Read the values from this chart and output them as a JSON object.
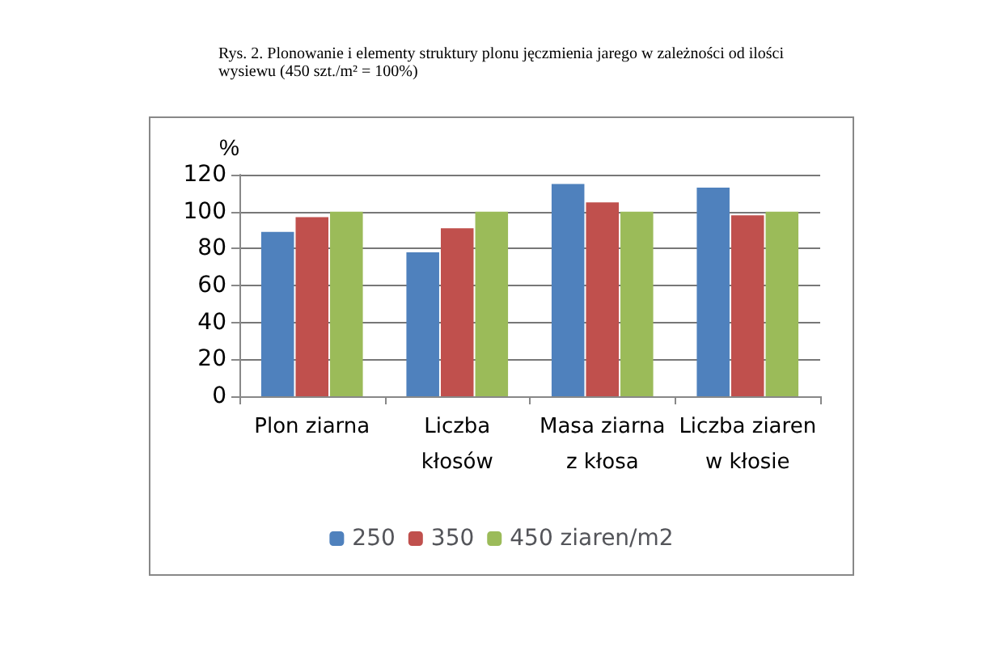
{
  "chart_data": {
    "type": "bar",
    "title": "Rys. 2. Plonowanie i elementy struktury plonu jęczmienia jarego w zależności od ilości wysiewu (450 szt./m² = 100%)",
    "ylabel": "%",
    "categories": [
      "Plon ziarna",
      "Liczba\nkłosów",
      "Masa ziarna\nz kłosa",
      "Liczba ziaren\nw kłosie"
    ],
    "series": [
      {
        "name": "250",
        "color": "#4f81bd",
        "values": [
          89,
          78,
          115,
          113
        ]
      },
      {
        "name": "350",
        "color": "#c0504d",
        "values": [
          97,
          91,
          105,
          98
        ]
      },
      {
        "name": "450 ziaren/m2",
        "color": "#9bbb59",
        "values": [
          100,
          100,
          100,
          100
        ]
      }
    ],
    "ylim": [
      0,
      120
    ],
    "yticks": [
      0,
      20,
      40,
      60,
      80,
      100,
      120
    ],
    "grid": "y",
    "legend": "bottom"
  }
}
